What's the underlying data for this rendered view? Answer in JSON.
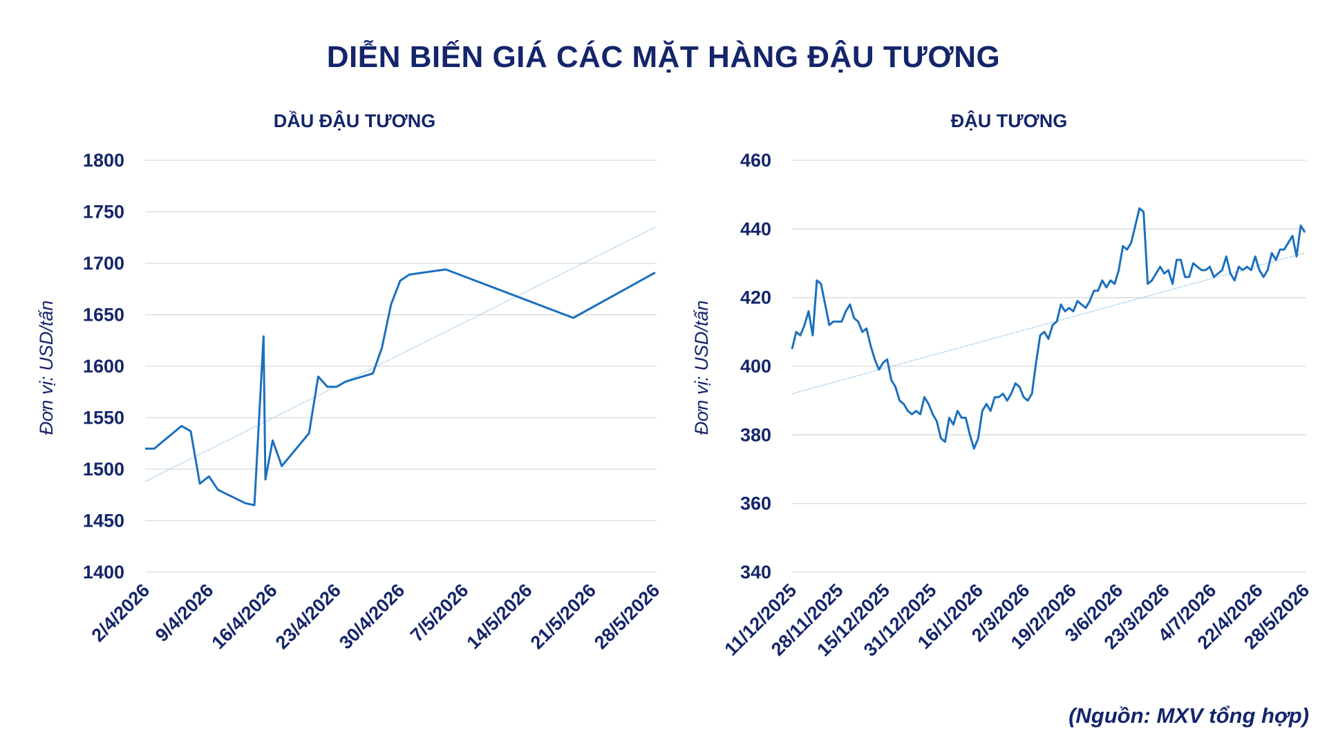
{
  "title": "DIỄN BIẾN GIÁ CÁC MẶT HÀNG ĐẬU TƯƠNG",
  "source": "(Nguồn: MXV tổng hợp)",
  "colors": {
    "line": "#1a6fbe",
    "trend": "#5aa7e0",
    "grid": "#d9d9d9",
    "text": "#14256b"
  },
  "chart_data": [
    {
      "type": "line",
      "title": "DẦU ĐẬU TƯƠNG",
      "ylabel": "Đơn vị: USD/tấn",
      "ylim": [
        1400,
        1800
      ],
      "yticks": [
        1400,
        1450,
        1500,
        1550,
        1600,
        1650,
        1700,
        1750,
        1800
      ],
      "xlim": [
        0,
        56
      ],
      "x_tick_labels": [
        "2/4/2026",
        "9/4/2026",
        "16/4/2026",
        "23/4/2026",
        "30/4/2026",
        "7/5/2026",
        "14/5/2026",
        "21/5/2026",
        "28/5/2026"
      ],
      "trendline": [
        [
          0,
          1488
        ],
        [
          56,
          1735
        ]
      ],
      "series": [
        {
          "values": [
            [
              0,
              1520
            ],
            [
              1,
              1520
            ],
            [
              4,
              1542
            ],
            [
              5,
              1537
            ],
            [
              6,
              1486
            ],
            [
              7,
              1493
            ],
            [
              8,
              1480
            ],
            [
              11,
              1467
            ],
            [
              12,
              1465
            ],
            [
              13,
              1629
            ],
            [
              13.2,
              1490
            ],
            [
              14,
              1528
            ],
            [
              15,
              1503
            ],
            [
              18,
              1535
            ],
            [
              19,
              1590
            ],
            [
              20,
              1580
            ],
            [
              21,
              1580
            ],
            [
              22,
              1585
            ],
            [
              25,
              1593
            ],
            [
              26,
              1618
            ],
            [
              27,
              1660
            ],
            [
              28,
              1683
            ],
            [
              29,
              1689
            ],
            [
              33,
              1694
            ],
            [
              47,
              1647
            ],
            [
              56,
              1691
            ]
          ]
        }
      ]
    },
    {
      "type": "line",
      "title": "ĐẬU TƯƠNG",
      "ylabel": "Đơn vị: USD/tấn",
      "ylim": [
        340,
        460
      ],
      "yticks": [
        340,
        360,
        380,
        400,
        420,
        440,
        460
      ],
      "xlim": [
        0,
        151
      ],
      "x_tick_labels": [
        "11/12/2025",
        "28/11/2025",
        "15/12/2025",
        "31/12/2025",
        "16/1/2026",
        "2/3/2026",
        "19/2/2026",
        "3/6/2026",
        "23/3/2026",
        "4/7/2026",
        "22/4/2026",
        "28/5/2026"
      ],
      "trendline": [
        [
          0,
          392
        ],
        [
          151,
          433
        ]
      ],
      "series": [
        {
          "values": [
            405,
            410,
            409,
            412,
            416,
            409,
            425,
            424,
            418,
            412,
            413,
            413,
            413,
            416,
            418,
            414,
            413,
            410,
            411,
            406,
            402,
            399,
            401,
            402,
            396,
            394,
            390,
            389,
            387,
            386,
            387,
            386,
            391,
            389,
            386,
            384,
            379,
            378,
            385,
            383,
            387,
            385,
            385,
            380,
            376,
            379,
            387,
            389,
            387,
            391,
            391,
            392,
            390,
            392,
            395,
            394,
            391,
            390,
            392,
            401,
            409,
            410,
            408,
            412,
            413,
            418,
            416,
            417,
            416,
            419,
            418,
            417,
            419,
            422,
            422,
            425,
            423,
            425,
            424,
            428,
            435,
            434,
            436,
            441,
            446,
            445,
            424,
            425,
            427,
            429,
            427,
            428,
            424,
            431,
            431,
            426,
            426,
            430,
            429,
            428,
            428,
            429,
            426,
            427,
            428,
            432,
            427,
            425,
            429,
            428,
            429,
            428,
            432,
            428,
            426,
            428,
            433,
            431,
            434,
            434,
            436,
            438,
            432,
            441,
            439
          ]
        }
      ]
    }
  ]
}
